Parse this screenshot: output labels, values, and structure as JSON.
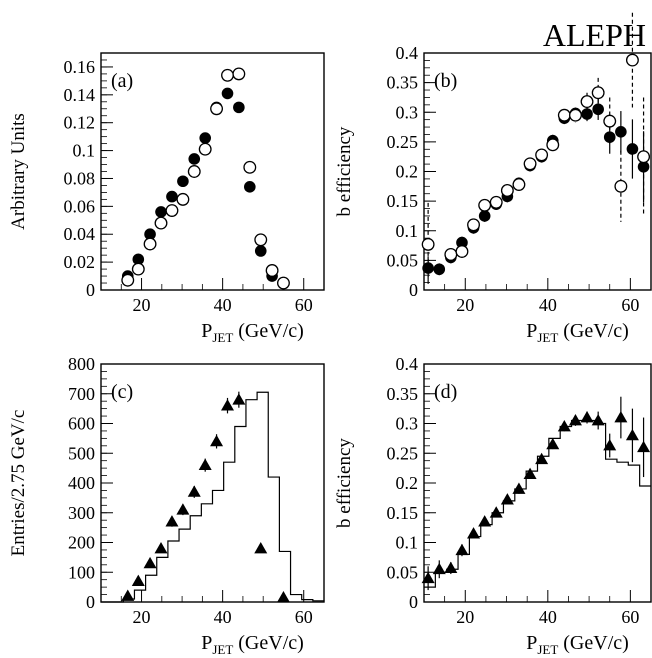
{
  "figure": {
    "label": "ALEPH"
  },
  "chart_data": [
    {
      "panel": "(a)",
      "type": "scatter",
      "ylabel": "Arbitrary Units",
      "xlabel_main": "P",
      "xlabel_sub": "JET",
      "xlabel_unit": " (GeV/c)",
      "xlim": [
        10,
        65
      ],
      "ylim": [
        0,
        0.17
      ],
      "xticks": [
        20,
        40,
        60
      ],
      "yticks": [
        0,
        0.02,
        0.04,
        0.06,
        0.08,
        0.1,
        0.12,
        0.14,
        0.16
      ],
      "ytick_labels": [
        "0",
        "0.02",
        "0.04",
        "0.06",
        "0.08",
        "0.1",
        "0.12",
        "0.14",
        "0.16"
      ],
      "series": [
        {
          "marker": "filled-circle",
          "x": [
            16.6,
            19.2,
            22.1,
            24.8,
            27.5,
            30.2,
            33.0,
            35.7,
            38.5,
            41.2,
            44.0,
            46.7,
            49.4,
            52.2
          ],
          "y": [
            0.01,
            0.022,
            0.04,
            0.056,
            0.067,
            0.078,
            0.094,
            0.109,
            0.131,
            0.141,
            0.131,
            0.074,
            0.028,
            0.01
          ]
        },
        {
          "marker": "open-circle",
          "x": [
            16.6,
            19.2,
            22.1,
            24.8,
            27.5,
            30.2,
            33.0,
            35.7,
            38.5,
            41.2,
            44.0,
            46.7,
            49.4,
            52.2,
            55.0
          ],
          "y": [
            0.007,
            0.015,
            0.033,
            0.048,
            0.057,
            0.065,
            0.085,
            0.101,
            0.13,
            0.154,
            0.155,
            0.088,
            0.036,
            0.014,
            0.005
          ]
        }
      ]
    },
    {
      "panel": "(b)",
      "type": "scatter",
      "ylabel": "b efficiency",
      "xlabel_main": "P",
      "xlabel_sub": "JET",
      "xlabel_unit": " (GeV/c)",
      "xlim": [
        10,
        65
      ],
      "ylim": [
        0,
        0.4
      ],
      "xticks": [
        20,
        40,
        60
      ],
      "yticks": [
        0,
        0.05,
        0.1,
        0.15,
        0.2,
        0.25,
        0.3,
        0.35,
        0.4
      ],
      "ytick_labels": [
        "0",
        "0.05",
        "0.1",
        "0.15",
        "0.2",
        "0.25",
        "0.3",
        "0.35",
        "0.4"
      ],
      "series": [
        {
          "marker": "filled-circle",
          "x": [
            11.0,
            13.7,
            16.5,
            19.2,
            22.0,
            24.7,
            27.5,
            30.2,
            33.0,
            35.7,
            38.5,
            41.2,
            44.0,
            46.7,
            49.5,
            52.2,
            55.0,
            57.7,
            60.5,
            63.2
          ],
          "y": [
            0.037,
            0.035,
            0.055,
            0.08,
            0.105,
            0.125,
            0.145,
            0.158,
            0.18,
            0.21,
            0.225,
            0.252,
            0.29,
            0.298,
            0.297,
            0.305,
            0.258,
            0.267,
            0.238,
            0.208
          ],
          "err": [
            0.02,
            0.01,
            0.01,
            0.01,
            0.01,
            0.01,
            0.01,
            0.01,
            0.01,
            0.01,
            0.01,
            0.01,
            0.01,
            0.01,
            0.012,
            0.018,
            0.028,
            0.035,
            0.05,
            0.06
          ]
        },
        {
          "marker": "open-circle",
          "x": [
            11.0,
            16.5,
            19.2,
            22.0,
            24.7,
            27.5,
            30.2,
            33.0,
            35.7,
            38.5,
            41.2,
            44.0,
            46.7,
            49.5,
            52.2,
            55.0,
            57.7,
            60.5,
            63.2
          ],
          "y": [
            0.077,
            0.06,
            0.065,
            0.11,
            0.143,
            0.148,
            0.168,
            0.178,
            0.213,
            0.228,
            0.245,
            0.295,
            0.295,
            0.318,
            0.333,
            0.285,
            0.175,
            0.388,
            0.225
          ],
          "err": [
            0.07,
            0.01,
            0.01,
            0.01,
            0.01,
            0.01,
            0.01,
            0.01,
            0.01,
            0.01,
            0.01,
            0.01,
            0.012,
            0.015,
            0.025,
            0.04,
            0.06,
            0.08,
            0.1
          ],
          "err_style": "dashed"
        }
      ]
    },
    {
      "panel": "(c)",
      "type": "bar",
      "ylabel": "Entries/2.75 GeV/c",
      "xlabel_main": "P",
      "xlabel_sub": "JET",
      "xlabel_unit": " (GeV/c)",
      "xlim": [
        10,
        65
      ],
      "ylim": [
        0,
        800
      ],
      "xticks": [
        20,
        40,
        60
      ],
      "yticks": [
        0,
        100,
        200,
        300,
        400,
        500,
        600,
        700,
        800
      ],
      "ytick_labels": [
        "0",
        "100",
        "200",
        "300",
        "400",
        "500",
        "600",
        "700",
        "800"
      ],
      "histogram": {
        "bin_width": 2.75,
        "edges_start": 10.0,
        "values": [
          0,
          0,
          10,
          40,
          90,
          150,
          205,
          245,
          290,
          330,
          375,
          470,
          590,
          680,
          705,
          420,
          170,
          25,
          8,
          4,
          2
        ]
      },
      "series": [
        {
          "marker": "filled-triangle",
          "x": [
            16.6,
            19.2,
            22.1,
            24.8,
            27.5,
            30.2,
            33.0,
            35.7,
            38.5,
            41.2,
            44.0,
            49.4,
            55.0
          ],
          "y": [
            20,
            70,
            130,
            180,
            270,
            310,
            370,
            460,
            540,
            660,
            680,
            180,
            15
          ],
          "err": [
            6,
            9,
            12,
            14,
            17,
            18,
            20,
            22,
            24,
            26,
            27,
            14,
            4
          ]
        }
      ]
    },
    {
      "panel": "(d)",
      "type": "scatter",
      "ylabel": "b efficiency",
      "xlabel_main": "P",
      "xlabel_sub": "JET",
      "xlabel_unit": " (GeV/c)",
      "xlim": [
        10,
        65
      ],
      "ylim": [
        0,
        0.4
      ],
      "xticks": [
        20,
        40,
        60
      ],
      "yticks": [
        0,
        0.05,
        0.1,
        0.15,
        0.2,
        0.25,
        0.3,
        0.35,
        0.4
      ],
      "ytick_labels": [
        "0",
        "0.05",
        "0.1",
        "0.15",
        "0.2",
        "0.25",
        "0.3",
        "0.35",
        "0.4"
      ],
      "histogram": {
        "bin_width": 2.75,
        "edges_start": 10.0,
        "values": [
          0.025,
          0.05,
          0.055,
          0.08,
          0.11,
          0.13,
          0.15,
          0.17,
          0.19,
          0.22,
          0.245,
          0.275,
          0.295,
          0.305,
          0.305,
          0.3,
          0.24,
          0.235,
          0.23,
          0.195
        ]
      },
      "series": [
        {
          "marker": "filled-triangle",
          "x": [
            11.0,
            13.7,
            16.5,
            19.2,
            22.0,
            24.7,
            27.5,
            30.2,
            33.0,
            35.7,
            38.5,
            41.2,
            44.0,
            46.7,
            49.5,
            52.2,
            55.0,
            57.7,
            60.5,
            63.2
          ],
          "y": [
            0.04,
            0.055,
            0.057,
            0.087,
            0.115,
            0.135,
            0.15,
            0.172,
            0.19,
            0.215,
            0.24,
            0.265,
            0.295,
            0.305,
            0.31,
            0.305,
            0.263,
            0.31,
            0.28,
            0.26
          ],
          "err": [
            0.02,
            0.015,
            0.01,
            0.01,
            0.008,
            0.008,
            0.008,
            0.008,
            0.008,
            0.008,
            0.008,
            0.008,
            0.008,
            0.009,
            0.01,
            0.015,
            0.02,
            0.035,
            0.045,
            0.05
          ]
        }
      ]
    }
  ]
}
